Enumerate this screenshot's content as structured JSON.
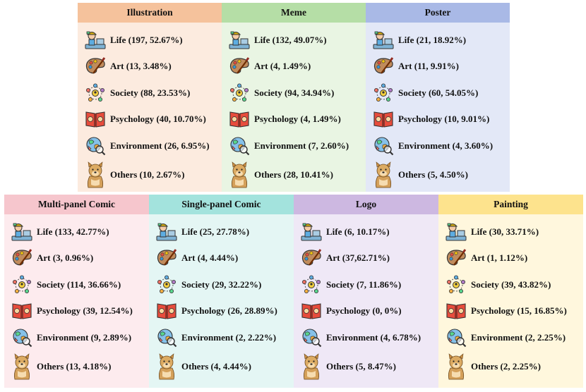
{
  "panels_top": [
    {
      "title": "Illustration",
      "header_color": "#f5c29c",
      "body_color": "#fcebdf",
      "items": [
        "Life (197, 52.67%)",
        "Art (13, 3.48%)",
        "Society (88, 23.53%)",
        "Psychology (40, 10.70%)",
        "Environment (26, 6.95%)",
        "Others (10, 2.67%)"
      ]
    },
    {
      "title": "Meme",
      "header_color": "#b5dea6",
      "body_color": "#e9f5e3",
      "items": [
        "Life (132, 49.07%)",
        "Art (4, 1.49%)",
        "Society (94, 34.94%)",
        "Psychology (4, 1.49%)",
        "Environment (7, 2.60%)",
        "Others (28, 10.41%)"
      ]
    },
    {
      "title": "Poster",
      "header_color": "#a9b9e6",
      "body_color": "#e3e8f7",
      "items": [
        "Life (21, 18.92%)",
        "Art (11, 9.91%)",
        "Society (60, 54.05%)",
        "Psychology (10, 9.01%)",
        "Environment (4, 3.60%)",
        "Others (5, 4.50%)"
      ]
    }
  ],
  "panels_bottom": [
    {
      "title": "Multi-panel Comic",
      "header_color": "#f6c6cd",
      "body_color": "#fdebee",
      "items": [
        "Life (133, 42.77%)",
        "Art (3, 0.96%)",
        "Society (114, 36.66%)",
        "Psychology (39, 12.54%)",
        "Environment (9, 2.89%)",
        "Others (13, 4.18%)"
      ]
    },
    {
      "title": "Single-panel Comic",
      "header_color": "#a3e3dd",
      "body_color": "#e4f6f4",
      "items": [
        "Life (25, 27.78%)",
        "Art (4, 4.44%)",
        "Society (29, 32.22%)",
        "Psychology (26, 28.89%)",
        "Environment (2, 2.22%)",
        "Others (4, 4.44%)"
      ]
    },
    {
      "title": "Logo",
      "header_color": "#cdb8e1",
      "body_color": "#efe8f6",
      "items": [
        "Life (6, 10.17%)",
        "Art (37,62.71%)",
        "Society (7, 11.86%)",
        "Psychology (0, 0%)",
        "Environment (4, 6.78%)",
        "Others (5, 8.47%)"
      ]
    },
    {
      "title": "Painting",
      "header_color": "#fde38d",
      "body_color": "#fff7dd",
      "items": [
        "Life (30, 33.71%)",
        "Art (1, 1.12%)",
        "Society (39, 43.82%)",
        "Psychology (15, 16.85%)",
        "Environment (2, 2.25%)",
        "Others (2, 2.25%)"
      ]
    }
  ],
  "icons": [
    "life-icon",
    "art-palette-icon",
    "society-network-icon",
    "psychology-book-icon",
    "environment-globe-icon",
    "others-dog-icon"
  ]
}
